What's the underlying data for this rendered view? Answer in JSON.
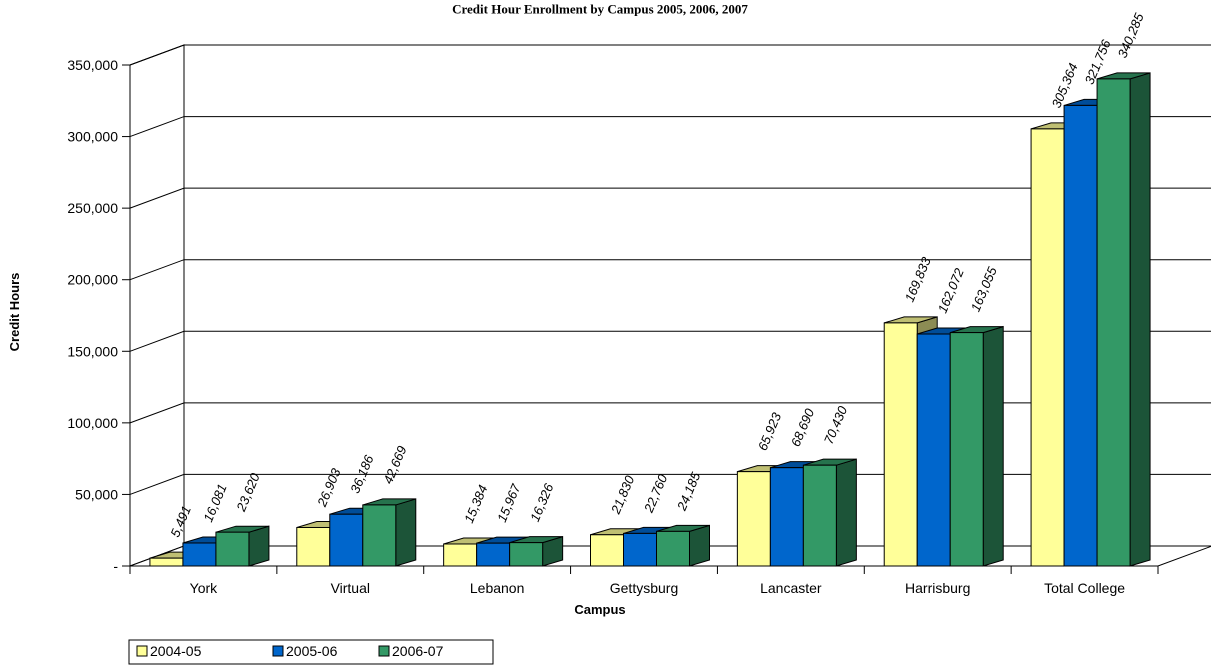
{
  "chart_data": {
    "type": "bar",
    "title": "Credit Hour Enrollment by Campus 2005, 2006, 2007",
    "xlabel": "Campus",
    "ylabel": "Credit Hours",
    "categories": [
      "York",
      "Virtual",
      "Lebanon",
      "Gettysburg",
      "Lancaster",
      "Harrisburg",
      "Total College"
    ],
    "series": [
      {
        "name": "2004-05",
        "color": "#FFFF99",
        "values": [
          5491,
          26903,
          15384,
          21830,
          65923,
          169833,
          305364
        ],
        "labels": [
          "5,491",
          "26,903",
          "15,384",
          "21,830",
          "65,923",
          "169,833",
          "305,364"
        ]
      },
      {
        "name": "2005-06",
        "color": "#0066CC",
        "values": [
          16081,
          36186,
          15967,
          22760,
          68690,
          162072,
          321756
        ],
        "labels": [
          "16,081",
          "36,186",
          "15,967",
          "22,760",
          "68,690",
          "162,072",
          "321,756"
        ]
      },
      {
        "name": "2006-07",
        "color": "#339966",
        "values": [
          23620,
          42669,
          16326,
          24185,
          70430,
          163055,
          340285
        ],
        "labels": [
          "23,620",
          "42,669",
          "16,326",
          "24,185",
          "70,430",
          "163,055",
          "340,285"
        ]
      }
    ],
    "ylim": [
      0,
      350000
    ],
    "yticks": [
      0,
      50000,
      100000,
      150000,
      200000,
      250000,
      300000,
      350000
    ],
    "ytick_labels": [
      "-",
      "50,000",
      "100,000",
      "150,000",
      "200,000",
      "250,000",
      "300,000",
      "350,000"
    ],
    "grid": true,
    "legend_position": "bottom-left",
    "style": "3d-clustered-column"
  }
}
